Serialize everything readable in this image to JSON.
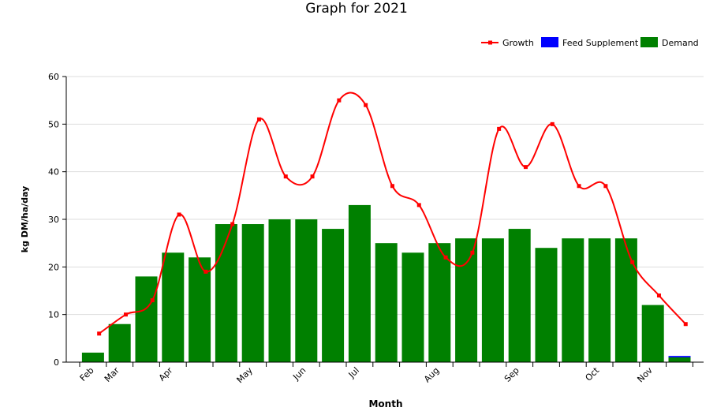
{
  "chart_data": {
    "type": "bar",
    "title": "Graph for 2021",
    "xlabel": "Month",
    "ylabel": "kg DM/ha/day",
    "ylim": [
      0,
      60
    ],
    "yticks": [
      0,
      10,
      20,
      30,
      40,
      50,
      60
    ],
    "grid": true,
    "legend_position": "top-right",
    "x_tick_labels": [
      "Feb",
      "Mar",
      "Apr",
      "May",
      "Jun",
      "Jul",
      "Aug",
      "Sep",
      "Oct",
      "Nov"
    ],
    "periods": 23,
    "series": [
      {
        "name": "Growth",
        "type": "line",
        "color": "#ff0000",
        "x": [
          1.2,
          2.2,
          3.2,
          4.2,
          5.2,
          6.2,
          7.2,
          8.2,
          9.2,
          10.2,
          11.2,
          12.2,
          13.2,
          14.2,
          15.2,
          16.2,
          17.2,
          18.2,
          19.2,
          20.2,
          21.2,
          22.2,
          23.2
        ],
        "values": [
          6,
          10,
          13,
          31,
          19,
          29,
          51,
          39,
          39,
          55,
          54,
          37,
          33,
          22,
          23,
          49,
          41,
          50,
          37,
          37,
          21,
          14,
          8
        ]
      },
      {
        "name": "Feed Supplement",
        "type": "bar",
        "color": "#0000ff",
        "values": [
          0,
          0,
          0,
          0,
          0,
          0,
          0,
          0,
          0,
          0,
          0,
          0,
          0,
          0,
          0,
          0,
          0,
          0,
          0,
          0,
          0,
          0,
          0.3
        ]
      },
      {
        "name": "Demand",
        "type": "bar",
        "color": "#008000",
        "values": [
          2,
          8,
          18,
          23,
          22,
          29,
          29,
          30,
          30,
          28,
          33,
          25,
          23,
          25,
          26,
          26,
          28,
          24,
          26,
          26,
          26,
          12,
          1
        ]
      }
    ]
  }
}
